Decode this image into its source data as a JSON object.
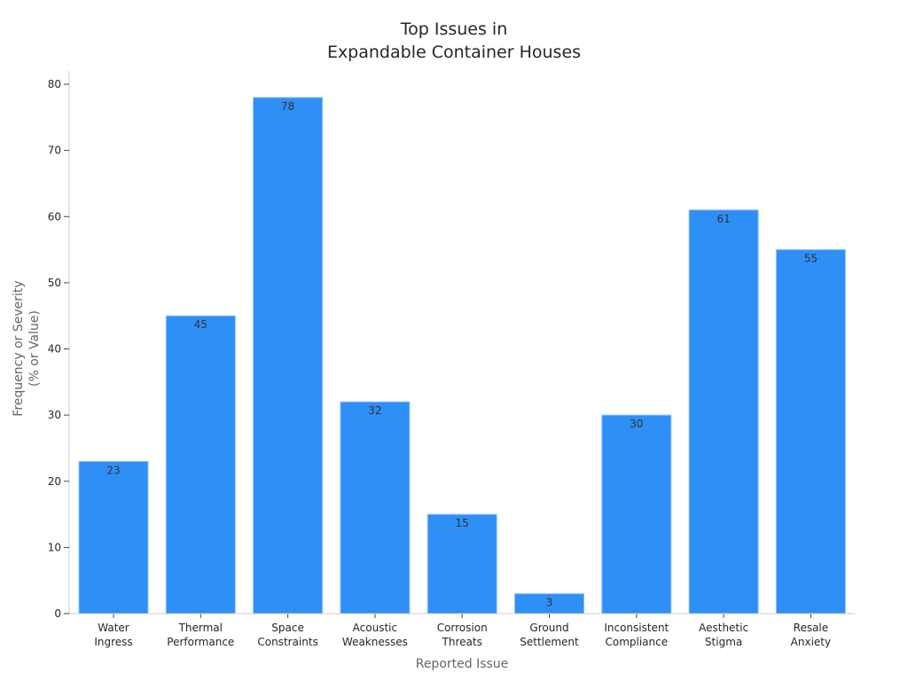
{
  "chart_data": {
    "type": "bar",
    "title": "Top Issues in\nExpandable Container Houses",
    "title_lines": [
      "Top Issues in",
      "Expandable Container Houses"
    ],
    "xlabel": "Reported Issue",
    "ylabel": "Frequency or Severity\n(% or Value)",
    "ylabel_lines": [
      "Frequency or Severity",
      "(% or Value)"
    ],
    "categories": [
      "Water Ingress",
      "Thermal Performance",
      "Space Constraints",
      "Acoustic Weaknesses",
      "Corrosion Threats",
      "Ground Settlement",
      "Inconsistent Compliance",
      "Aesthetic Stigma",
      "Resale Anxiety"
    ],
    "category_lines": [
      [
        "Water",
        "Ingress"
      ],
      [
        "Thermal",
        "Performance"
      ],
      [
        "Space",
        "Constraints"
      ],
      [
        "Acoustic",
        "Weaknesses"
      ],
      [
        "Corrosion",
        "Threats"
      ],
      [
        "Ground",
        "Settlement"
      ],
      [
        "Inconsistent",
        "Compliance"
      ],
      [
        "Aesthetic",
        "Stigma"
      ],
      [
        "Resale",
        "Anxiety"
      ]
    ],
    "values": [
      23,
      45,
      78,
      32,
      15,
      3,
      30,
      61,
      55
    ],
    "yticks": [
      0,
      10,
      20,
      30,
      40,
      50,
      60,
      70,
      80
    ],
    "ylim": [
      0,
      80
    ],
    "grid": false,
    "legend": null,
    "data_labels": true,
    "bar_color": "#2e8ff7",
    "bar_edge_color": "#8ec3fb"
  }
}
